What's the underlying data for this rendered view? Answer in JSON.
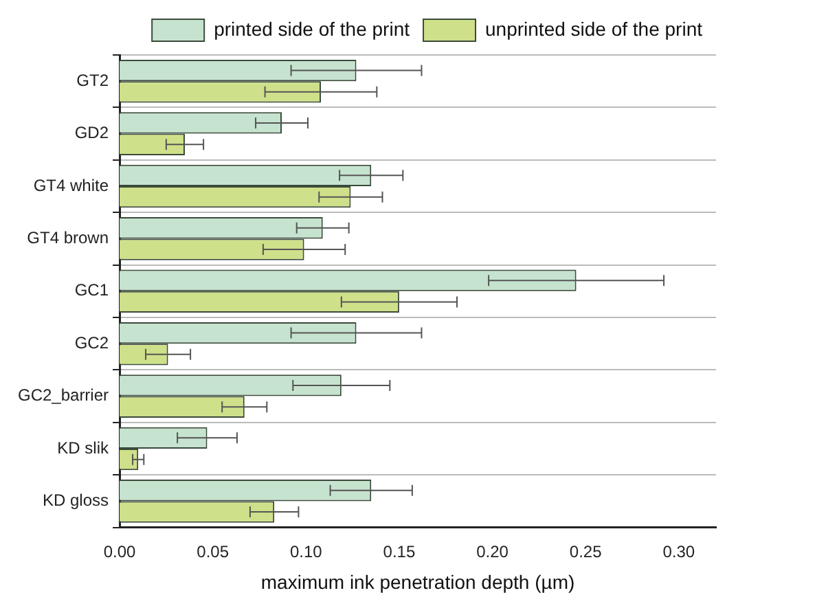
{
  "chart_data": {
    "type": "bar",
    "orientation": "horizontal",
    "xlabel": "maximum ink penetration depth (µm)",
    "categories": [
      "GT2",
      "GD2",
      "GT4 white",
      "GT4 brown",
      "GC1",
      "GC2",
      "GC2_barrier",
      "KD slik",
      "KD gloss"
    ],
    "series": [
      {
        "name": "printed side of the print",
        "color": "#c6e3cf",
        "values": [
          0.127,
          0.087,
          0.135,
          0.109,
          0.245,
          0.127,
          0.119,
          0.047,
          0.135
        ],
        "errors": [
          0.035,
          0.014,
          0.017,
          0.014,
          0.047,
          0.035,
          0.026,
          0.016,
          0.022
        ]
      },
      {
        "name": "unprinted side of the print",
        "color": "#cfe08a",
        "values": [
          0.108,
          0.035,
          0.124,
          0.099,
          0.15,
          0.026,
          0.067,
          0.01,
          0.083
        ],
        "errors": [
          0.03,
          0.01,
          0.017,
          0.022,
          0.031,
          0.012,
          0.012,
          0.003,
          0.013
        ]
      }
    ],
    "xlim": [
      0,
      0.32
    ],
    "xticks": [
      {
        "value": 0,
        "label": "0.00"
      },
      0.05,
      {
        "value": 0.1,
        "label": "0.10"
      },
      0.15,
      {
        "value": 0.2,
        "label": "0.20"
      },
      0.25,
      {
        "value": 0.3,
        "label": "0.30"
      }
    ],
    "grid": "y",
    "legend": "top right"
  }
}
